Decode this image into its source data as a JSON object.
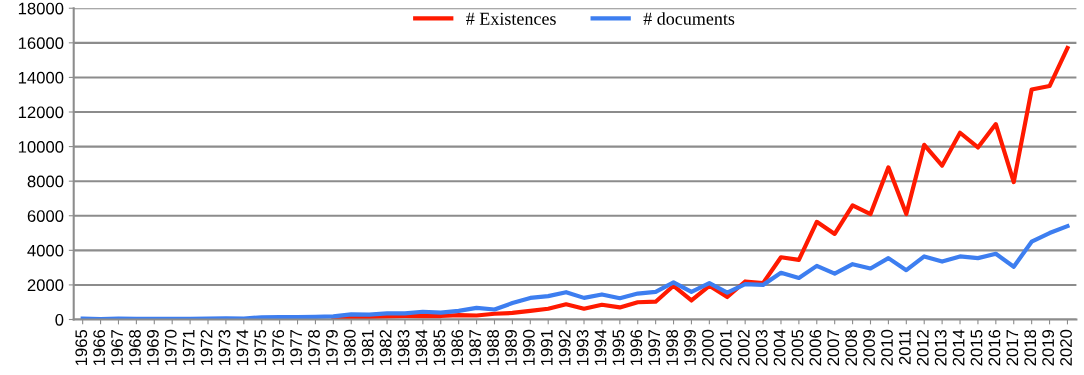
{
  "chart_data": {
    "type": "line",
    "categories": [
      "1965",
      "1966",
      "1967",
      "1968",
      "1969",
      "1970",
      "1971",
      "1972",
      "1973",
      "1974",
      "1975",
      "1976",
      "1977",
      "1978",
      "1979",
      "1980",
      "1981",
      "1982",
      "1983",
      "1984",
      "1985",
      "1986",
      "1987",
      "1988",
      "1989",
      "1990",
      "1991",
      "1992",
      "1993",
      "1994",
      "1995",
      "1996",
      "1997",
      "1998",
      "1999",
      "2000",
      "2001",
      "2002",
      "2003",
      "2004",
      "2005",
      "2006",
      "2007",
      "2008",
      "2009",
      "2010",
      "2011",
      "2012",
      "2013",
      "2014",
      "2015",
      "2016",
      "2017",
      "2018",
      "2019",
      "2020"
    ],
    "series": [
      {
        "name": "# Existences",
        "color": "#ff1a00",
        "values": [
          null,
          null,
          null,
          null,
          null,
          null,
          null,
          null,
          null,
          null,
          null,
          null,
          null,
          null,
          80,
          150,
          150,
          180,
          200,
          200,
          200,
          250,
          230,
          330,
          380,
          500,
          620,
          880,
          620,
          850,
          700,
          1000,
          1030,
          1950,
          1100,
          1950,
          1300,
          2200,
          2100,
          3600,
          3450,
          5650,
          4950,
          6600,
          6100,
          8800,
          6100,
          10100,
          8900,
          10800,
          9950,
          11300,
          7950,
          13300,
          13500,
          15700
        ]
      },
      {
        "name": "# documents",
        "color": "#3d7ef0",
        "values": [
          50,
          30,
          50,
          40,
          40,
          40,
          40,
          50,
          70,
          50,
          130,
          140,
          140,
          150,
          180,
          300,
          280,
          350,
          350,
          450,
          400,
          500,
          670,
          580,
          950,
          1250,
          1350,
          1580,
          1250,
          1450,
          1230,
          1500,
          1600,
          2150,
          1600,
          2100,
          1550,
          2050,
          2000,
          2700,
          2400,
          3100,
          2650,
          3200,
          2950,
          3550,
          2850,
          3650,
          3350,
          3650,
          3550,
          3800,
          3050,
          4500,
          5000,
          5400
        ]
      }
    ],
    "ylim": [
      0,
      18000
    ],
    "yticks": [
      0,
      2000,
      4000,
      6000,
      8000,
      10000,
      12000,
      14000,
      16000,
      18000
    ],
    "grid": "y",
    "legend": "top",
    "marker": "none",
    "line_style": "solid"
  }
}
